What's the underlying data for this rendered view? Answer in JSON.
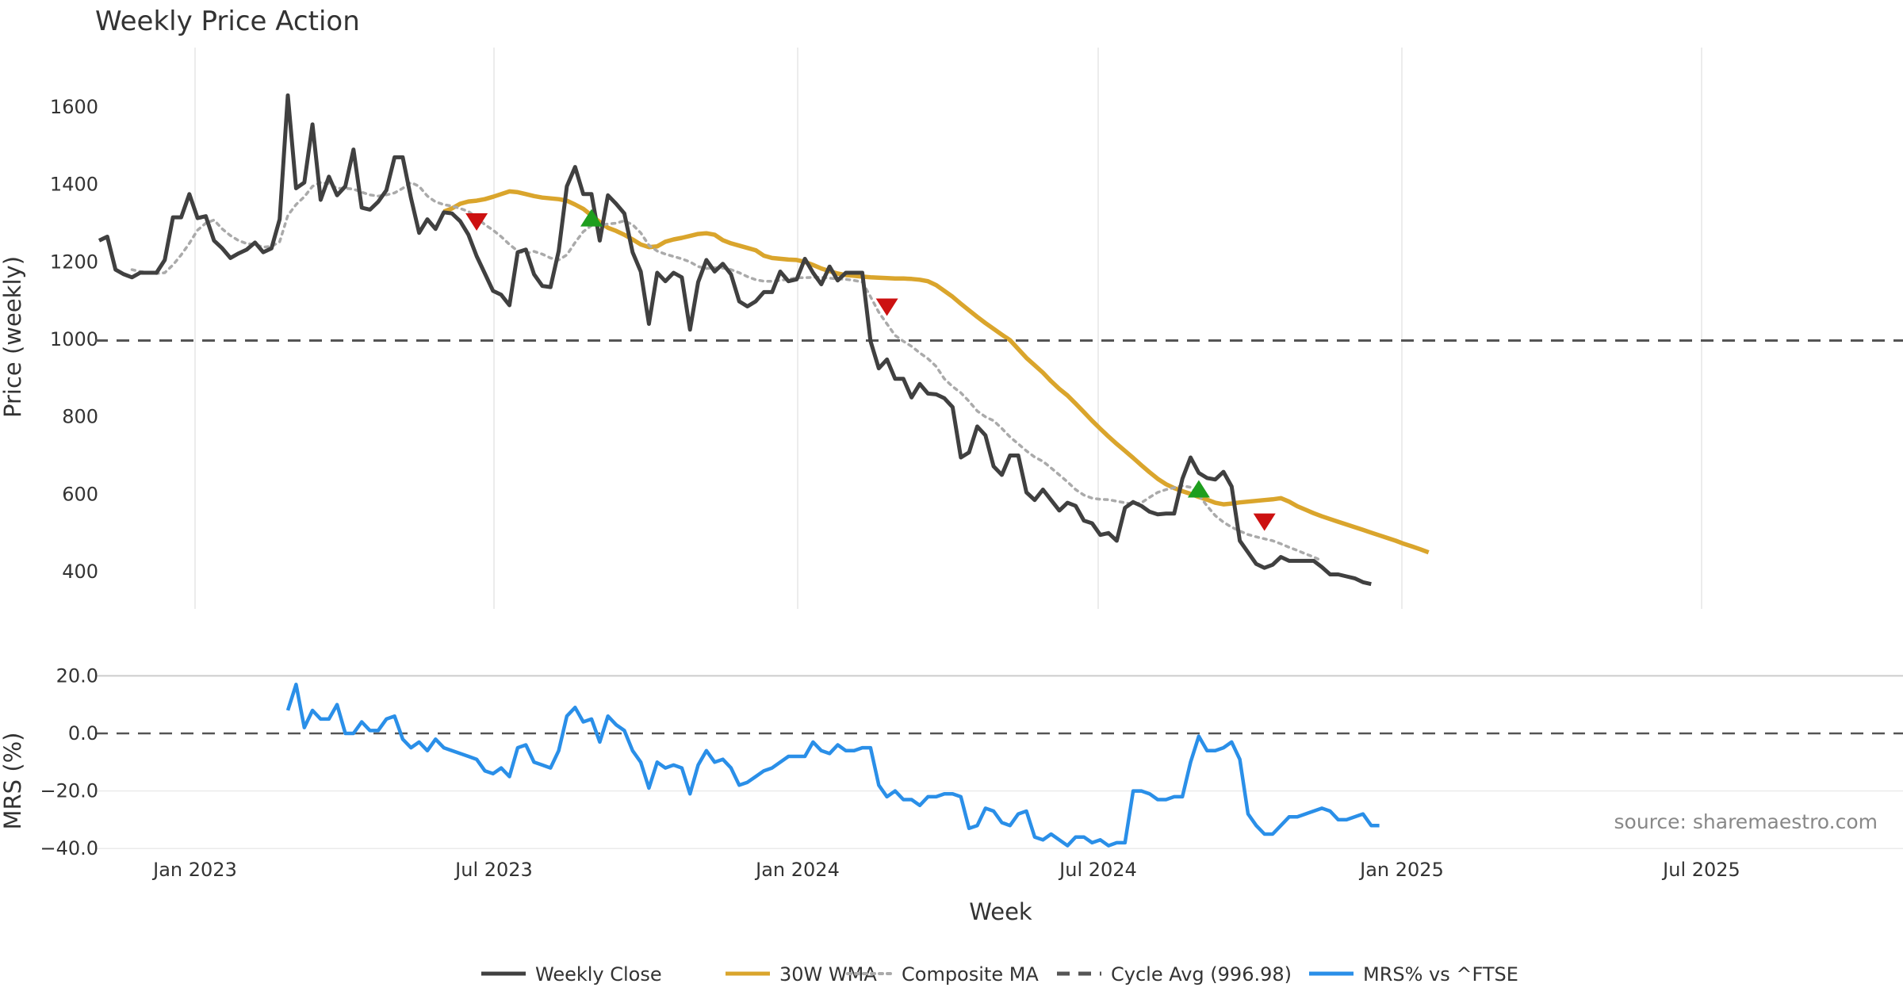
{
  "chart_data": {
    "type": "line",
    "title": "Weekly Price Action",
    "xlabel": "Week",
    "x_tick_labels": [
      "Jan 2023",
      "Jul 2023",
      "Jan 2024",
      "Jul 2024",
      "Jan 2025",
      "Jul 2025"
    ],
    "price_panel": {
      "ylabel": "Price (weekly)",
      "ylim": [
        305,
        1715
      ],
      "y_ticks": [
        400,
        600,
        800,
        1000,
        1200,
        1400,
        1600
      ],
      "grid": "vertical",
      "series": [
        {
          "name": "Weekly Close",
          "color": "#404040",
          "style": "solid",
          "start_week": 0,
          "values": [
            1255,
            1265,
            1180,
            1168,
            1160,
            1172,
            1172,
            1172,
            1205,
            1315,
            1315,
            1375,
            1313,
            1318,
            1255,
            1235,
            1210,
            1222,
            1232,
            1250,
            1225,
            1235,
            1310,
            1630,
            1390,
            1405,
            1555,
            1360,
            1420,
            1372,
            1395,
            1490,
            1340,
            1335,
            1355,
            1385,
            1470,
            1470,
            1365,
            1275,
            1310,
            1285,
            1328,
            1325,
            1305,
            1270,
            1215,
            1170,
            1125,
            1115,
            1088,
            1225,
            1232,
            1168,
            1138,
            1135,
            1228,
            1395,
            1445,
            1375,
            1375,
            1255,
            1372,
            1350,
            1325,
            1225,
            1175,
            1040,
            1172,
            1150,
            1172,
            1160,
            1025,
            1148,
            1205,
            1175,
            1195,
            1168,
            1098,
            1085,
            1098,
            1122,
            1122,
            1175,
            1150,
            1155,
            1208,
            1172,
            1142,
            1188,
            1152,
            1172,
            1172,
            1172,
            995,
            925,
            948,
            898,
            898,
            850,
            885,
            860,
            858,
            848,
            825,
            695,
            708,
            775,
            752,
            672,
            650,
            700,
            700,
            605,
            585,
            612,
            585,
            558,
            578,
            570,
            532,
            525,
            495,
            500,
            480,
            565,
            580,
            570,
            555,
            548,
            550,
            550,
            640,
            695,
            655,
            642,
            638,
            658,
            620,
            480,
            450,
            420,
            410,
            418,
            438,
            428,
            428,
            428,
            428,
            412,
            393,
            393,
            388,
            383,
            373,
            368
          ]
        },
        {
          "name": "30W WMA",
          "color": "#DAA52C",
          "style": "solid",
          "start_week": 42,
          "values": [
            1330,
            1338,
            1350,
            1356,
            1358,
            1362,
            1368,
            1375,
            1382,
            1380,
            1375,
            1370,
            1366,
            1364,
            1362,
            1358,
            1348,
            1337,
            1320,
            1303,
            1288,
            1280,
            1270,
            1258,
            1245,
            1238,
            1240,
            1252,
            1258,
            1262,
            1267,
            1272,
            1274,
            1270,
            1256,
            1248,
            1242,
            1236,
            1230,
            1216,
            1210,
            1208,
            1206,
            1205,
            1200,
            1192,
            1183,
            1176,
            1170,
            1166,
            1164,
            1162,
            1160,
            1159,
            1158,
            1157,
            1157,
            1156,
            1154,
            1150,
            1140,
            1125,
            1110,
            1092,
            1075,
            1058,
            1042,
            1027,
            1012,
            998,
            975,
            952,
            933,
            914,
            892,
            872,
            855,
            834,
            812,
            790,
            769,
            749,
            730,
            712,
            694,
            675,
            657,
            640,
            626,
            616,
            608,
            601,
            593,
            586,
            578,
            574,
            576,
            579,
            581,
            583,
            585,
            587,
            590,
            581,
            569,
            560,
            551,
            543,
            536,
            529,
            522,
            515,
            508,
            501,
            494,
            487,
            480,
            472,
            465,
            458,
            450
          ]
        },
        {
          "name": "Composite MA",
          "color": "#AAAAAA",
          "style": "dotted",
          "start_week": 4,
          "values": [
            1180,
            1175,
            1173,
            1170,
            1172,
            1192,
            1218,
            1248,
            1282,
            1300,
            1308,
            1285,
            1268,
            1255,
            1247,
            1245,
            1238,
            1240,
            1252,
            1320,
            1348,
            1368,
            1395,
            1405,
            1402,
            1390,
            1390,
            1388,
            1380,
            1373,
            1370,
            1373,
            1378,
            1390,
            1405,
            1395,
            1370,
            1355,
            1348,
            1344,
            1338,
            1330,
            1315,
            1296,
            1282,
            1265,
            1245,
            1228,
            1222,
            1227,
            1220,
            1210,
            1205,
            1218,
            1250,
            1278,
            1294,
            1294,
            1298,
            1300,
            1306,
            1296,
            1275,
            1243,
            1228,
            1220,
            1214,
            1208,
            1200,
            1188,
            1183,
            1185,
            1184,
            1180,
            1172,
            1162,
            1154,
            1150,
            1150,
            1152,
            1155,
            1159,
            1159,
            1160,
            1160,
            1158,
            1156,
            1155,
            1152,
            1148,
            1110,
            1070,
            1040,
            1010,
            995,
            982,
            965,
            950,
            930,
            898,
            878,
            862,
            840,
            815,
            800,
            790,
            770,
            748,
            730,
            712,
            696,
            685,
            668,
            650,
            632,
            612,
            598,
            590,
            587,
            586,
            582,
            578,
            574,
            578,
            592,
            605,
            612,
            617,
            622,
            618,
            598,
            570,
            545,
            528,
            515,
            505,
            496,
            490,
            485,
            480,
            472,
            463,
            455,
            446,
            438,
            428
          ]
        },
        {
          "name": "Cycle Avg (996.98)",
          "color": "#555555",
          "style": "dashed",
          "value": 996.98
        }
      ],
      "markers": [
        {
          "type": "sell",
          "color": "#CC1111",
          "week": 46,
          "value": 1305
        },
        {
          "type": "buy",
          "color": "#1E9E1E",
          "week": 60,
          "value": 1312
        },
        {
          "type": "sell",
          "color": "#CC1111",
          "week": 96,
          "value": 1085
        },
        {
          "type": "buy",
          "color": "#1E9E1E",
          "week": 134,
          "value": 612
        },
        {
          "type": "sell",
          "color": "#CC1111",
          "week": 142,
          "value": 530
        }
      ]
    },
    "mrs_panel": {
      "ylabel": "MRS (%)",
      "ylim": [
        -40,
        20
      ],
      "y_ticks": [
        -40.0,
        -20.0,
        0.0,
        20.0
      ],
      "tick_labels": [
        "−40.0",
        "−20.0",
        "0.0",
        "20.0"
      ],
      "zero_line": "dashed",
      "series": [
        {
          "name": "MRS% vs ^FTSE",
          "color": "#2A8FE8",
          "style": "solid",
          "start_week": 23,
          "values": [
            8,
            17,
            2,
            8,
            5,
            5,
            10,
            0,
            0,
            4,
            1,
            1,
            5,
            6,
            -2,
            -5,
            -3,
            -6,
            -2,
            -5,
            -6,
            -7,
            -8,
            -9,
            -13,
            -14,
            -12,
            -15,
            -5,
            -4,
            -10,
            -11,
            -12,
            -6,
            6,
            9,
            4,
            5,
            -3,
            6,
            3,
            1,
            -6,
            -10,
            -19,
            -10,
            -12,
            -11,
            -12,
            -21,
            -11,
            -6,
            -10,
            -9,
            -12,
            -18,
            -17,
            -15,
            -13,
            -12,
            -10,
            -8,
            -8,
            -8,
            -3,
            -6,
            -7,
            -4,
            -6,
            -6,
            -5,
            -5,
            -18,
            -22,
            -20,
            -23,
            -23,
            -25,
            -22,
            -22,
            -21,
            -21,
            -22,
            -33,
            -32,
            -26,
            -27,
            -31,
            -32,
            -28,
            -27,
            -36,
            -37,
            -35,
            -37,
            -39,
            -36,
            -36,
            -38,
            -37,
            -39,
            -38,
            -38,
            -20,
            -20,
            -21,
            -23,
            -23,
            -22,
            -22,
            -10,
            -1,
            -6,
            -6,
            -5,
            -3,
            -9,
            -28,
            -32,
            -35,
            -35,
            -32,
            -29,
            -29,
            -28,
            -27,
            -26,
            -27,
            -30,
            -30,
            -29,
            -28,
            -32,
            -32
          ]
        }
      ]
    },
    "legend": {
      "position": "bottom-center",
      "items": [
        {
          "label": "Weekly Close",
          "color": "#404040",
          "style": "solid"
        },
        {
          "label": "30W WMA",
          "color": "#DAA52C",
          "style": "solid"
        },
        {
          "label": "Composite MA",
          "color": "#AAAAAA",
          "style": "dotted"
        },
        {
          "label": "Cycle Avg (996.98)",
          "color": "#555555",
          "style": "dashed"
        },
        {
          "label": "MRS% vs ^FTSE",
          "color": "#2A8FE8",
          "style": "solid"
        }
      ]
    },
    "source_note": "source: sharemaestro.com"
  }
}
